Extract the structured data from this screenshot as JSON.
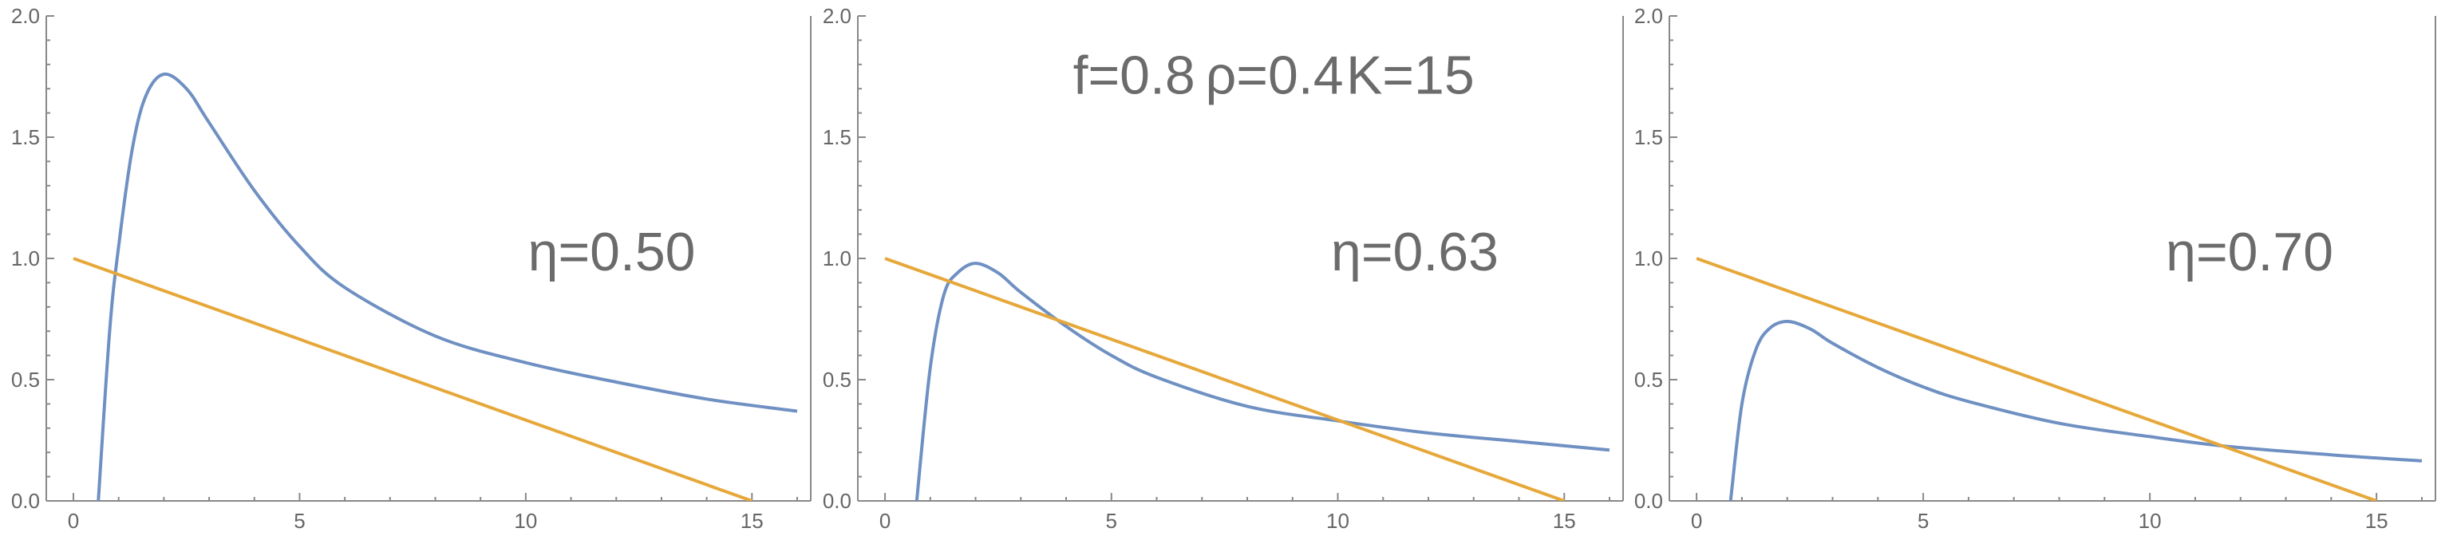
{
  "chart_data": [
    {
      "type": "line",
      "title": "",
      "xlabel": "",
      "ylabel": "",
      "xlim": [
        -0.6,
        16.3
      ],
      "ylim": [
        0,
        2.0
      ],
      "x_ticks": [
        0,
        5,
        10,
        15
      ],
      "y_ticks": [
        0.0,
        0.5,
        1.0,
        1.5,
        2.0
      ],
      "x_tick_labels": [
        "0",
        "5",
        "10",
        "15"
      ],
      "y_tick_labels": [
        "0.0",
        "0.5",
        "1.0",
        "1.5",
        "2.0"
      ],
      "grid": false,
      "annotations": [
        {
          "text": "η=0.50",
          "x": 11.9,
          "y": 0.95
        }
      ],
      "series": [
        {
          "color": "#6F90C2",
          "x": [
            0.55,
            0.8,
            1.0,
            1.3,
            1.6,
            2.0,
            2.5,
            3.0,
            4.0,
            5.0,
            6.0,
            8.0,
            10.0,
            12.0,
            14.0,
            16.0
          ],
          "y": [
            0.0,
            0.7,
            1.05,
            1.45,
            1.67,
            1.76,
            1.7,
            1.56,
            1.28,
            1.05,
            0.88,
            0.68,
            0.57,
            0.49,
            0.42,
            0.37
          ]
        },
        {
          "color": "#E6A83A",
          "x": [
            0,
            15
          ],
          "y": [
            1.0,
            0.0
          ]
        }
      ]
    },
    {
      "type": "line",
      "title": "",
      "xlabel": "",
      "ylabel": "",
      "xlim": [
        -0.6,
        16.3
      ],
      "ylim": [
        0,
        2.0
      ],
      "x_ticks": [
        0,
        5,
        10,
        15
      ],
      "y_ticks": [
        0.0,
        0.5,
        1.0,
        1.5,
        2.0
      ],
      "x_tick_labels": [
        "0",
        "5",
        "10",
        "15"
      ],
      "y_tick_labels": [
        "0.0",
        "0.5",
        "1.0",
        "1.5",
        "2.0"
      ],
      "grid": false,
      "annotations": [
        {
          "text": "f=0.8",
          "x": 5.5,
          "y": 1.68
        },
        {
          "text": "ρ=0.4",
          "x": 8.6,
          "y": 1.68
        },
        {
          "text": "K=15",
          "x": 11.6,
          "y": 1.68
        },
        {
          "text": "η=0.63",
          "x": 11.7,
          "y": 0.95
        }
      ],
      "series": [
        {
          "color": "#6F90C2",
          "x": [
            0.7,
            1.0,
            1.3,
            1.6,
            2.0,
            2.5,
            3.0,
            4.0,
            5.0,
            6.0,
            8.0,
            10.0,
            12.0,
            14.0,
            16.0
          ],
          "y": [
            0.0,
            0.55,
            0.85,
            0.94,
            0.98,
            0.94,
            0.86,
            0.72,
            0.6,
            0.51,
            0.39,
            0.33,
            0.28,
            0.245,
            0.21
          ]
        },
        {
          "color": "#E6A83A",
          "x": [
            0,
            15
          ],
          "y": [
            1.0,
            0.0
          ]
        }
      ]
    },
    {
      "type": "line",
      "title": "",
      "xlabel": "",
      "ylabel": "",
      "xlim": [
        -0.6,
        16.3
      ],
      "ylim": [
        0,
        2.0
      ],
      "x_ticks": [
        0,
        5,
        10,
        15
      ],
      "y_ticks": [
        0.0,
        0.5,
        1.0,
        1.5,
        2.0
      ],
      "x_tick_labels": [
        "0",
        "5",
        "10",
        "15"
      ],
      "y_tick_labels": [
        "0.0",
        "0.5",
        "1.0",
        "1.5",
        "2.0"
      ],
      "grid": false,
      "annotations": [
        {
          "text": "η=0.70",
          "x": 12.2,
          "y": 0.95
        }
      ],
      "series": [
        {
          "color": "#6F90C2",
          "x": [
            0.75,
            1.0,
            1.3,
            1.6,
            2.0,
            2.5,
            3.0,
            4.0,
            5.0,
            6.0,
            8.0,
            10.0,
            11.7,
            14.0,
            16.0
          ],
          "y": [
            0.0,
            0.4,
            0.62,
            0.71,
            0.74,
            0.71,
            0.65,
            0.55,
            0.47,
            0.41,
            0.32,
            0.265,
            0.225,
            0.19,
            0.165
          ]
        },
        {
          "color": "#E6A83A",
          "x": [
            0,
            15
          ],
          "y": [
            1.0,
            0.0
          ]
        }
      ]
    }
  ]
}
